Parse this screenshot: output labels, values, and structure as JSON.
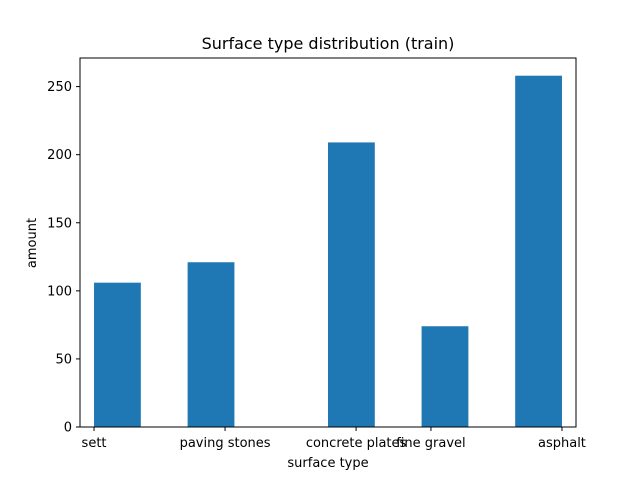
{
  "chart_data": {
    "type": "bar",
    "title": "Surface type distribution (train)",
    "xlabel": "surface type",
    "ylabel": "amount",
    "bar_color": "#1f77b4",
    "ylim": [
      0,
      271
    ],
    "yticks": [
      0,
      50,
      100,
      150,
      200,
      250
    ],
    "xlim": [
      -0.03,
      1.03
    ],
    "categories": [
      "sett",
      "paving stones",
      "concrete plates",
      "fine gravel",
      "asphalt"
    ],
    "category_positions": [
      0.0,
      0.28,
      0.56,
      0.72,
      1.0
    ],
    "bars": [
      {
        "x_start": 0.0,
        "x_end": 0.1,
        "value": 106
      },
      {
        "x_start": 0.2,
        "x_end": 0.3,
        "value": 121
      },
      {
        "x_start": 0.5,
        "x_end": 0.6,
        "value": 209
      },
      {
        "x_start": 0.7,
        "x_end": 0.8,
        "value": 74
      },
      {
        "x_start": 0.9,
        "x_end": 1.0,
        "value": 258
      }
    ],
    "grid": false,
    "legend": "none"
  }
}
